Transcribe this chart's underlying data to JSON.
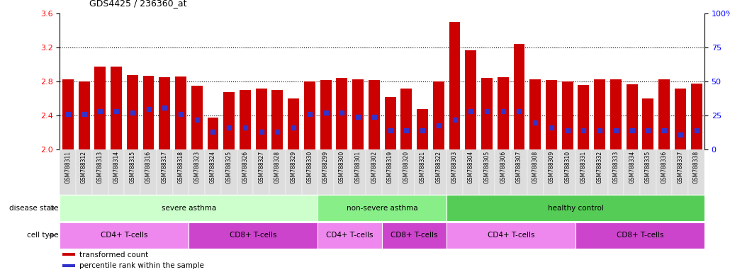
{
  "title": "GDS4425 / 236360_at",
  "ylim_left": [
    2.0,
    3.6
  ],
  "ylim_right": [
    0,
    100
  ],
  "yticks_left": [
    2.0,
    2.4,
    2.8,
    3.2,
    3.6
  ],
  "yticks_right": [
    0,
    25,
    50,
    75,
    100
  ],
  "ytick_labels_right": [
    "0",
    "25",
    "50",
    "75",
    "100%"
  ],
  "bar_color": "#cc0000",
  "marker_color": "#3333cc",
  "samples": [
    "GSM788311",
    "GSM788312",
    "GSM788313",
    "GSM788314",
    "GSM788315",
    "GSM788316",
    "GSM788317",
    "GSM788318",
    "GSM788323",
    "GSM788324",
    "GSM788325",
    "GSM788326",
    "GSM788327",
    "GSM788328",
    "GSM788329",
    "GSM788330",
    "GSM788299",
    "GSM788300",
    "GSM788301",
    "GSM788302",
    "GSM788319",
    "GSM788320",
    "GSM788321",
    "GSM788322",
    "GSM788303",
    "GSM788304",
    "GSM788305",
    "GSM788306",
    "GSM788307",
    "GSM788308",
    "GSM788309",
    "GSM788310",
    "GSM788331",
    "GSM788332",
    "GSM788333",
    "GSM788334",
    "GSM788335",
    "GSM788336",
    "GSM788337",
    "GSM788338"
  ],
  "bar_heights": [
    2.83,
    2.8,
    2.98,
    2.98,
    2.88,
    2.87,
    2.85,
    2.86,
    2.75,
    2.38,
    2.68,
    2.7,
    2.72,
    2.7,
    2.6,
    2.8,
    2.82,
    2.84,
    2.83,
    2.82,
    2.62,
    2.72,
    2.48,
    2.8,
    3.5,
    3.17,
    2.84,
    2.85,
    3.24,
    2.83,
    2.82,
    2.8,
    2.76,
    2.83,
    2.83,
    2.77,
    2.6,
    2.83,
    2.72,
    2.78
  ],
  "percentile_values": [
    26,
    26,
    28,
    28,
    27,
    30,
    31,
    26,
    22,
    13,
    16,
    16,
    13,
    13,
    16,
    26,
    27,
    27,
    24,
    24,
    14,
    14,
    14,
    18,
    22,
    28,
    28,
    28,
    28,
    20,
    16,
    14,
    14,
    14,
    14,
    14,
    14,
    14,
    11,
    14
  ],
  "disease_state_groups": [
    {
      "label": "severe asthma",
      "start": 0,
      "end": 15,
      "color": "#ccffcc"
    },
    {
      "label": "non-severe asthma",
      "start": 16,
      "end": 23,
      "color": "#88ee88"
    },
    {
      "label": "healthy control",
      "start": 24,
      "end": 39,
      "color": "#55cc55"
    }
  ],
  "cell_type_groups": [
    {
      "label": "CD4+ T-cells",
      "start": 0,
      "end": 7,
      "color": "#ee88ee"
    },
    {
      "label": "CD8+ T-cells",
      "start": 8,
      "end": 15,
      "color": "#cc44cc"
    },
    {
      "label": "CD4+ T-cells",
      "start": 16,
      "end": 19,
      "color": "#ee88ee"
    },
    {
      "label": "CD8+ T-cells",
      "start": 20,
      "end": 23,
      "color": "#cc44cc"
    },
    {
      "label": "CD4+ T-cells",
      "start": 24,
      "end": 31,
      "color": "#ee88ee"
    },
    {
      "label": "CD8+ T-cells",
      "start": 32,
      "end": 39,
      "color": "#cc44cc"
    }
  ],
  "legend_items": [
    {
      "label": "transformed count",
      "color": "#cc0000"
    },
    {
      "label": "percentile rank within the sample",
      "color": "#3333cc"
    }
  ]
}
